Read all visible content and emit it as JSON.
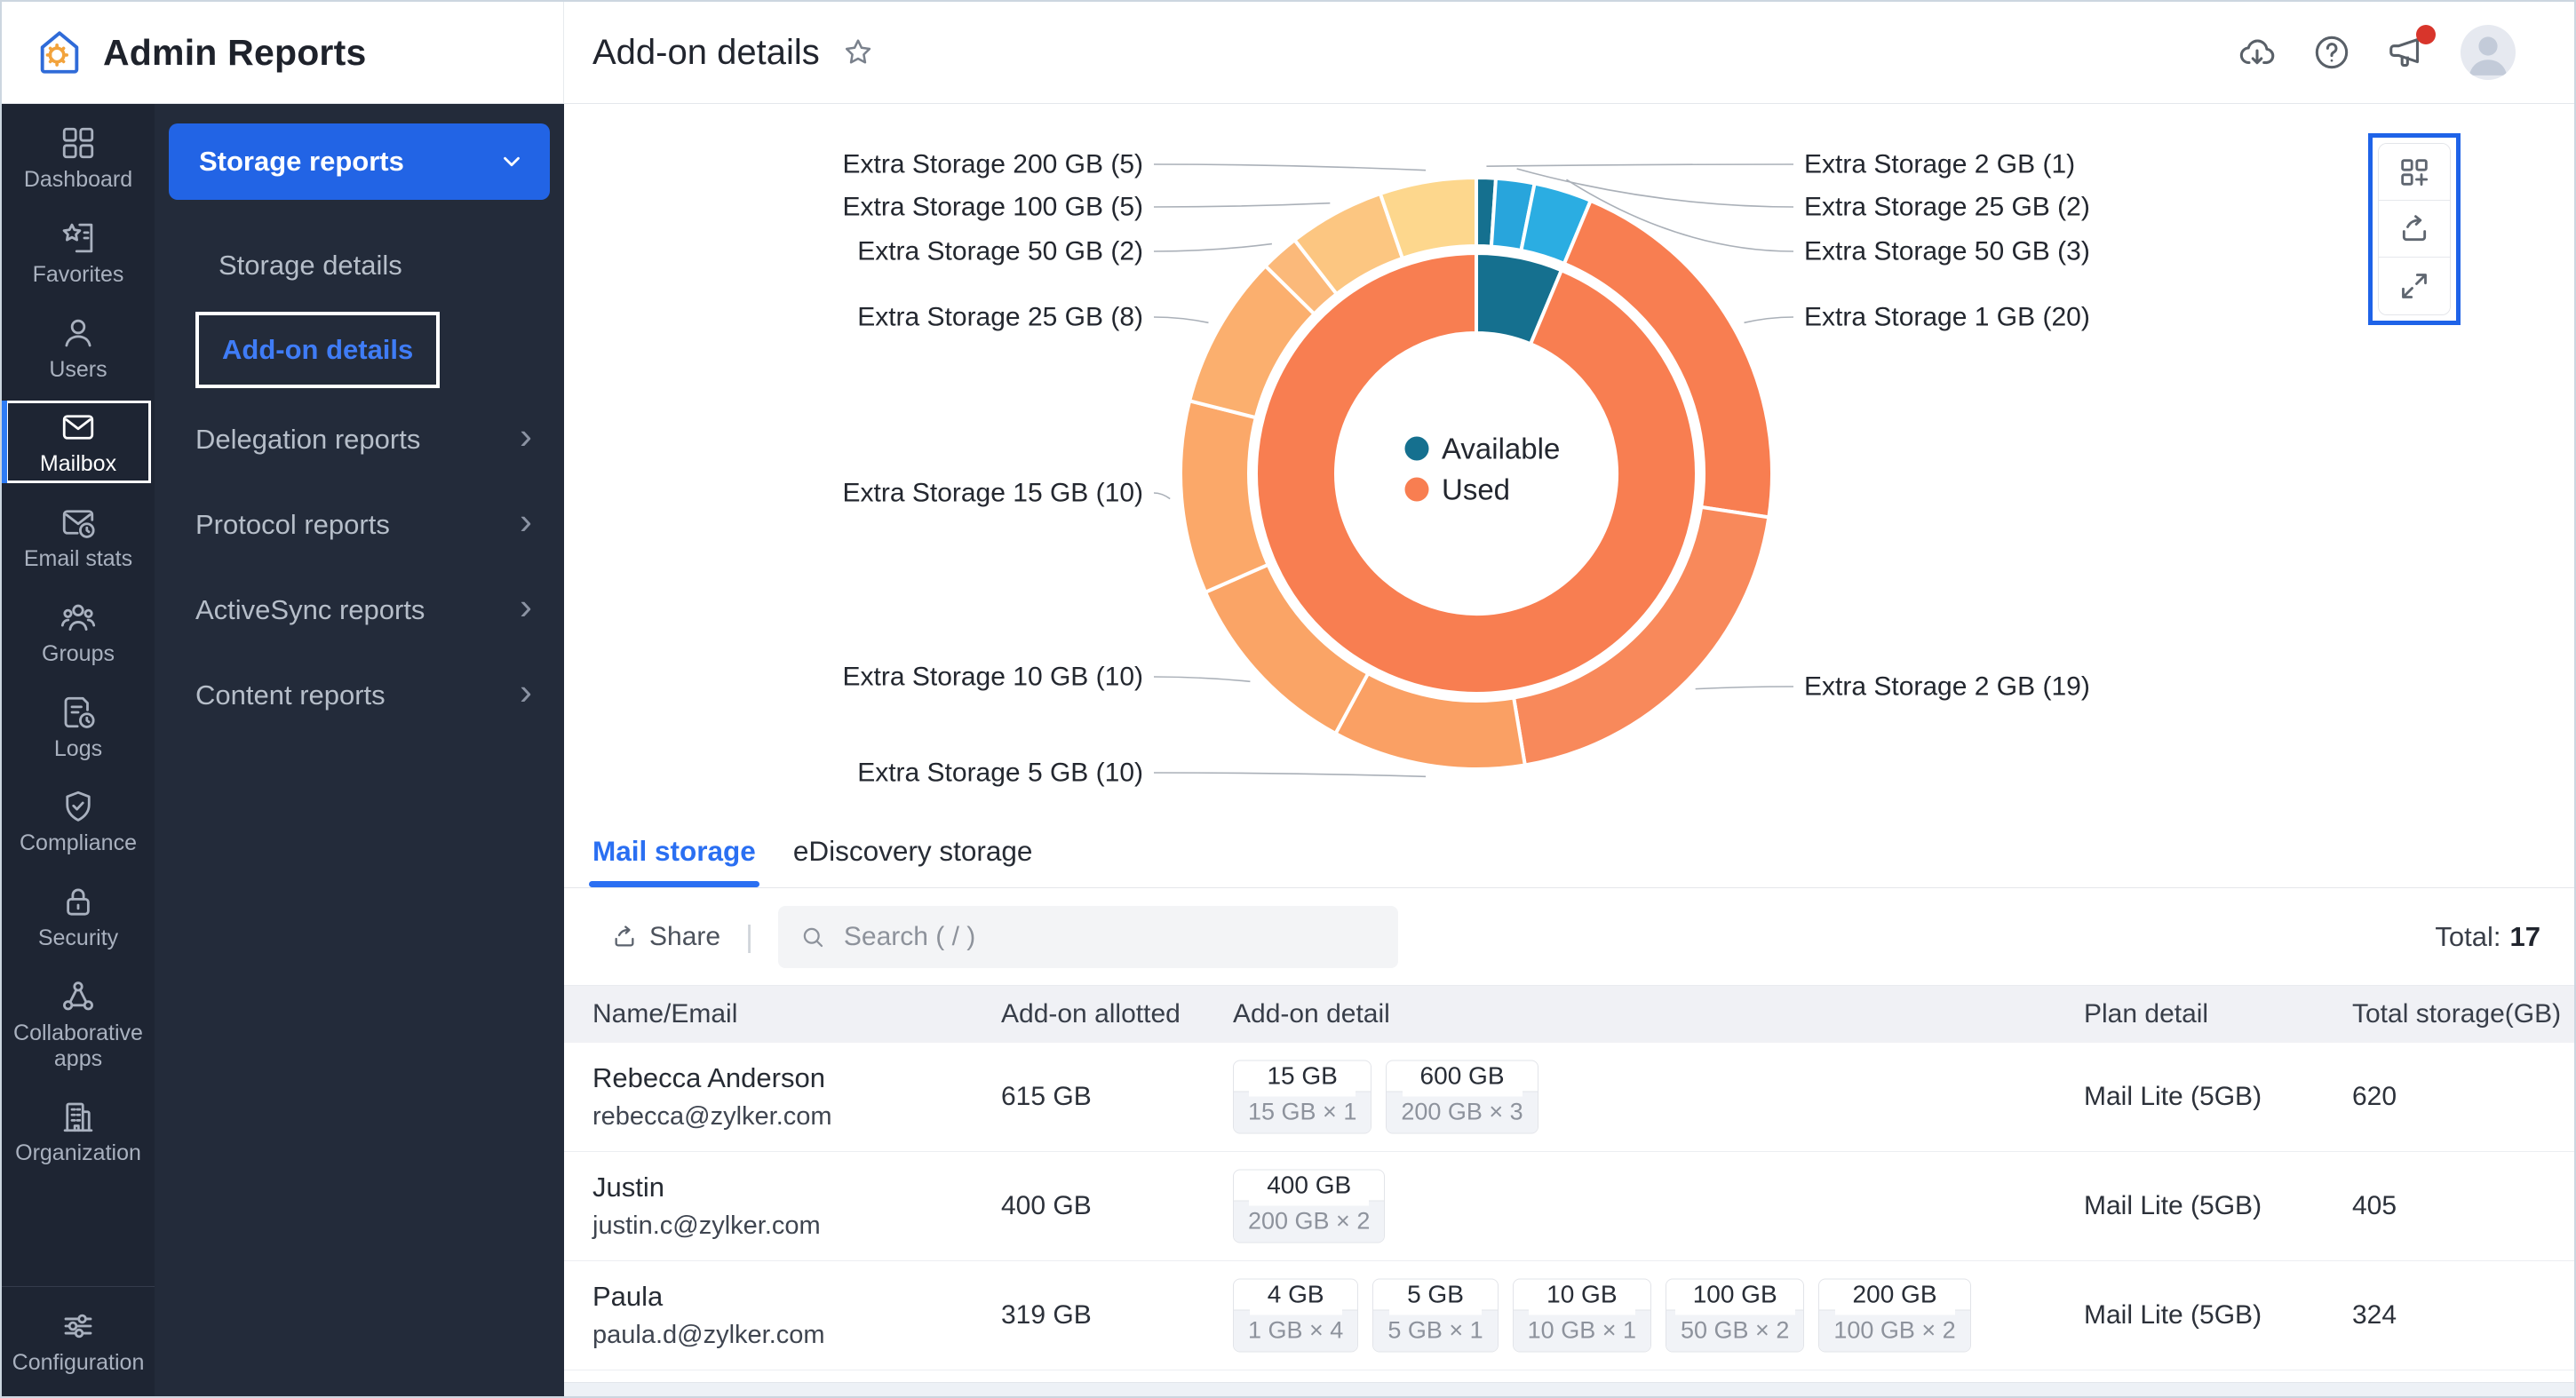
{
  "header": {
    "app_title": "Admin Reports",
    "page_title": "Add-on details",
    "right_icons": [
      "download-icon",
      "help-icon",
      "announcement-icon",
      "avatar"
    ],
    "announcement_has_badge": true
  },
  "nav_rail": {
    "items": [
      {
        "label": "Dashboard",
        "icon": "dashboard-icon",
        "selected": false
      },
      {
        "label": "Favorites",
        "icon": "favorites-icon",
        "selected": false
      },
      {
        "label": "Users",
        "icon": "users-icon",
        "selected": false
      },
      {
        "label": "Mailbox",
        "icon": "mailbox-icon",
        "selected": true
      },
      {
        "label": "Email stats",
        "icon": "email-stats-icon",
        "selected": false
      },
      {
        "label": "Groups",
        "icon": "groups-icon",
        "selected": false
      },
      {
        "label": "Logs",
        "icon": "logs-icon",
        "selected": false
      },
      {
        "label": "Compliance",
        "icon": "compliance-icon",
        "selected": false
      },
      {
        "label": "Security",
        "icon": "security-icon",
        "selected": false
      },
      {
        "label": "Collaborative apps",
        "icon": "collaborative-apps-icon",
        "selected": false
      },
      {
        "label": "Organization",
        "icon": "organization-icon",
        "selected": false
      }
    ],
    "bottom_item": {
      "label": "Configuration",
      "icon": "configuration-icon",
      "selected": false
    }
  },
  "report_menu": {
    "expanded_group": {
      "label": "Storage reports"
    },
    "items": [
      {
        "label": "Storage details",
        "type": "child",
        "active": false
      },
      {
        "label": "Add-on details",
        "type": "child",
        "active": true
      },
      {
        "label": "Delegation reports",
        "type": "group"
      },
      {
        "label": "Protocol reports",
        "type": "group"
      },
      {
        "label": "ActiveSync reports",
        "type": "group"
      },
      {
        "label": "Content reports",
        "type": "group"
      }
    ]
  },
  "chart_data": {
    "type": "donut",
    "legend_position": "center",
    "legend": [
      {
        "label": "Available",
        "color": "#15708f"
      },
      {
        "label": "Used",
        "color": "#f87e51"
      }
    ],
    "segments": [
      {
        "label": "Extra Storage 2 GB (1)",
        "addon": "Extra Storage 2 GB",
        "count": 1,
        "group": "available",
        "color": "#15708f"
      },
      {
        "label": "Extra Storage 25 GB (2)",
        "addon": "Extra Storage 25 GB",
        "count": 2,
        "group": "available",
        "color": "#28a5dc"
      },
      {
        "label": "Extra Storage 50 GB (3)",
        "addon": "Extra Storage 50 GB",
        "count": 3,
        "group": "available",
        "color": "#2bade2"
      },
      {
        "label": "Extra Storage 1 GB (20)",
        "addon": "Extra Storage 1 GB",
        "count": 20,
        "group": "used",
        "color": "#f87e51"
      },
      {
        "label": "Extra Storage 2 GB (19)",
        "addon": "Extra Storage 2 GB",
        "count": 19,
        "group": "used",
        "color": "#f8895b"
      },
      {
        "label": "Extra Storage 5 GB (10)",
        "addon": "Extra Storage 5 GB",
        "count": 10,
        "group": "used",
        "color": "#faa064"
      },
      {
        "label": "Extra Storage 10 GB (10)",
        "addon": "Extra Storage 10 GB",
        "count": 10,
        "group": "used",
        "color": "#faa466"
      },
      {
        "label": "Extra Storage 15 GB (10)",
        "addon": "Extra Storage 15 GB",
        "count": 10,
        "group": "used",
        "color": "#fba869"
      },
      {
        "label": "Extra Storage 25 GB (8)",
        "addon": "Extra Storage 25 GB",
        "count": 8,
        "group": "used",
        "color": "#fbaf6e"
      },
      {
        "label": "Extra Storage 50 GB (2)",
        "addon": "Extra Storage 50 GB",
        "count": 2,
        "group": "used",
        "color": "#fbb97a"
      },
      {
        "label": "Extra Storage 100 GB (5)",
        "addon": "Extra Storage 100 GB",
        "count": 5,
        "group": "used",
        "color": "#fcc681"
      },
      {
        "label": "Extra Storage 200 GB (5)",
        "addon": "Extra Storage 200 GB",
        "count": 5,
        "group": "used",
        "color": "#fdd78d"
      }
    ],
    "inner_ring": [
      {
        "label": "Available",
        "count": 6,
        "color": "#15708f"
      },
      {
        "label": "Used",
        "count": 89,
        "color": "#f87e51"
      }
    ]
  },
  "chart_toolbox": {
    "buttons": [
      {
        "icon": "grid-add-icon",
        "name": "add-to-dashboard-button"
      },
      {
        "icon": "share-icon",
        "name": "share-chart-button"
      },
      {
        "icon": "expand-icon",
        "name": "expand-chart-button"
      }
    ]
  },
  "tabs": [
    {
      "label": "Mail storage",
      "active": true
    },
    {
      "label": "eDiscovery storage",
      "active": false
    }
  ],
  "toolbar": {
    "share_label": "Share",
    "search_placeholder": "Search ( / )",
    "total_label": "Total:",
    "total_value": "17"
  },
  "table": {
    "columns": [
      "Name/Email",
      "Add-on allotted",
      "Add-on detail",
      "Plan detail",
      "Total storage(GB)"
    ],
    "rows": [
      {
        "name": "Rebecca Anderson",
        "email": "rebecca@zylker.com",
        "allotted": "615 GB",
        "addons": [
          {
            "total": "15 GB",
            "detail": "15 GB × 1"
          },
          {
            "total": "600 GB",
            "detail": "200 GB × 3"
          }
        ],
        "plan": "Mail Lite (5GB)",
        "total_storage": "620"
      },
      {
        "name": "Justin",
        "email": "justin.c@zylker.com",
        "allotted": "400 GB",
        "addons": [
          {
            "total": "400 GB",
            "detail": "200 GB × 2"
          }
        ],
        "plan": "Mail Lite (5GB)",
        "total_storage": "405"
      },
      {
        "name": "Paula",
        "email": "paula.d@zylker.com",
        "allotted": "319 GB",
        "addons": [
          {
            "total": "4 GB",
            "detail": "1 GB × 4"
          },
          {
            "total": "5 GB",
            "detail": "5 GB × 1"
          },
          {
            "total": "10 GB",
            "detail": "10 GB × 1"
          },
          {
            "total": "100 GB",
            "detail": "50 GB × 2"
          },
          {
            "total": "200 GB",
            "detail": "100 GB × 2"
          }
        ],
        "plan": "Mail Lite (5GB)",
        "total_storage": "324"
      }
    ]
  },
  "colors": {
    "accent_blue": "#2264e5",
    "link_blue": "#2a6ff2",
    "rail_bg": "#1e2533",
    "menu_bg": "#232b3a",
    "available_teal": "#15708f",
    "used_orange": "#f87e51",
    "badge_red": "#d8352b"
  }
}
